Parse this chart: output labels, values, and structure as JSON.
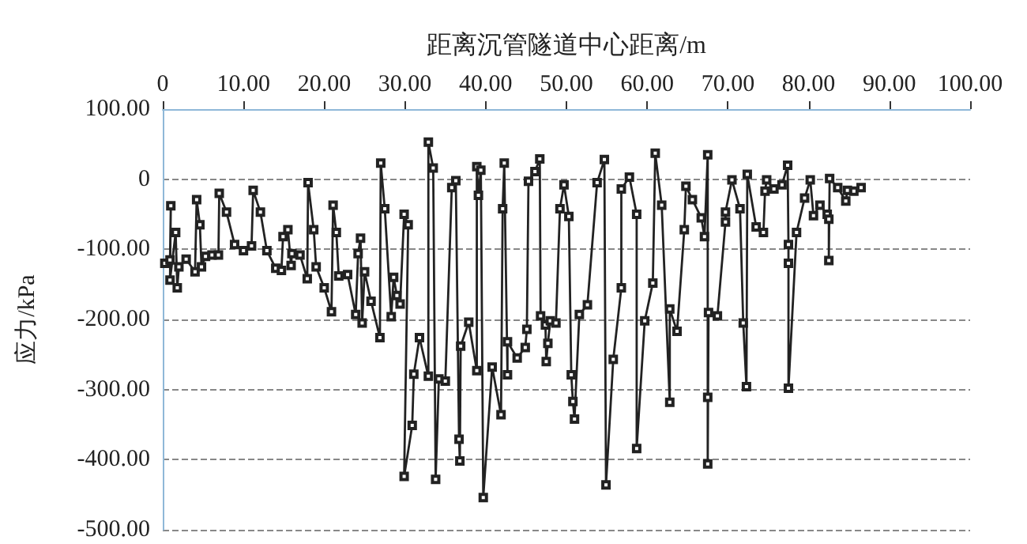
{
  "chart_data": {
    "type": "line",
    "xlabel": "距离沉管隧道中心距离/m",
    "ylabel": "应力/kPa",
    "series": [
      {
        "color": "#222222",
        "x": [
          0.26,
          0.9,
          1.0,
          0.9,
          1.6,
          1.8,
          2.0,
          2.9,
          4.0,
          4.2,
          4.6,
          4.8,
          5.3,
          6.1,
          6.9,
          7.0,
          7.9,
          8.9,
          10.0,
          11.0,
          11.2,
          12.1,
          12.9,
          14.0,
          14.7,
          14.9,
          15.5,
          15.9,
          16.0,
          17.0,
          17.9,
          18.0,
          18.7,
          19.0,
          20.0,
          20.9,
          21.1,
          21.5,
          21.8,
          22.9,
          23.9,
          24.2,
          24.5,
          24.7,
          25.0,
          25.8,
          26.9,
          27.0,
          27.5,
          28.3,
          28.6,
          29.0,
          29.4,
          29.9,
          30.4,
          29.9,
          30.9,
          31.1,
          31.8,
          32.9,
          32.9,
          33.5,
          33.8,
          34.2,
          35.0,
          35.8,
          36.3,
          36.7,
          36.8,
          36.9,
          37.9,
          38.9,
          38.9,
          39.1,
          39.4,
          39.7,
          40.8,
          41.9,
          42.1,
          42.3,
          42.7,
          42.7,
          43.9,
          44.9,
          45.1,
          45.3,
          46.1,
          46.7,
          46.8,
          47.4,
          47.5,
          47.7,
          48.0,
          48.7,
          49.2,
          49.7,
          50.3,
          50.6,
          50.8,
          51.0,
          51.6,
          52.6,
          53.8,
          54.7,
          54.9,
          55.8,
          56.8,
          56.8,
          57.8,
          58.7,
          58.7,
          59.7,
          60.7,
          61.0,
          61.8,
          62.8,
          62.8,
          63.7,
          64.6,
          64.8,
          65.6,
          66.7,
          67.1,
          67.5,
          67.5,
          67.5,
          67.6,
          68.7,
          69.7,
          69.7,
          70.5,
          71.5,
          71.9,
          72.3,
          72.4,
          73.5,
          74.4,
          74.6,
          74.8,
          75.7,
          76.7,
          77.4,
          77.5,
          77.5,
          77.5,
          78.5,
          79.5,
          80.2,
          80.6,
          81.4,
          82.3,
          82.5,
          82.5,
          82.6,
          83.6,
          84.6,
          84.8,
          85.6,
          86.5
        ],
        "values": [
          -120,
          -115,
          -38,
          -144,
          -76,
          -155,
          -125,
          -114,
          -132,
          -29,
          -65,
          -125,
          -110,
          -108,
          -108,
          -20,
          -47,
          -93,
          -102,
          -95,
          -16,
          -47,
          -102,
          -127,
          -130,
          -82,
          -72,
          -123,
          -106,
          -108,
          -142,
          -5,
          -72,
          -125,
          -155,
          -189,
          -37,
          -76,
          -138,
          -136,
          -193,
          -106,
          -84,
          -205,
          -132,
          -174,
          -226,
          23,
          -42,
          -196,
          -140,
          -166,
          -178,
          -50,
          -65,
          -424,
          -351,
          -278,
          -226,
          -281,
          53,
          16,
          -428,
          -285,
          -288,
          -12,
          -2,
          -371,
          -402,
          -238,
          -204,
          -273,
          18,
          -23,
          13,
          -454,
          -268,
          -336,
          -42,
          23,
          -279,
          -232,
          -255,
          -240,
          -214,
          -3,
          11,
          29,
          -195,
          -208,
          -260,
          -234,
          -202,
          -205,
          -42,
          -8,
          -53,
          -279,
          -317,
          -342,
          -193,
          -179,
          -5,
          28,
          -436,
          -257,
          -155,
          -14,
          3,
          -50,
          -384,
          -202,
          -148,
          37,
          -37,
          -318,
          -185,
          -217,
          -72,
          -10,
          -29,
          -55,
          -82,
          35,
          -311,
          -406,
          -190,
          -195,
          -61,
          -47,
          -1,
          -42,
          -205,
          -296,
          7,
          -68,
          -76,
          -17,
          -1,
          -14,
          -8,
          20,
          -93,
          -120,
          -298,
          -76,
          -27,
          -1,
          -52,
          -37,
          -50,
          -57,
          -116,
          1,
          -12,
          -31,
          -16,
          -17,
          -12
        ]
      }
    ],
    "xlim": [
      0,
      100
    ],
    "xticks": [
      {
        "value": 0,
        "label": "0"
      },
      {
        "value": 10,
        "label": "10.00"
      },
      {
        "value": 20,
        "label": "20.00"
      },
      {
        "value": 30,
        "label": "30.00"
      },
      {
        "value": 40,
        "label": "40.00"
      },
      {
        "value": 50,
        "label": "50.00"
      },
      {
        "value": 60,
        "label": "60.00"
      },
      {
        "value": 70,
        "label": "70.00"
      },
      {
        "value": 80,
        "label": "80.00"
      },
      {
        "value": 90,
        "label": "90.00"
      },
      {
        "value": 100,
        "label": "100.00"
      }
    ],
    "ylim": [
      -500,
      100
    ],
    "yticks": [
      {
        "value": 100,
        "label": "100.00"
      },
      {
        "value": 0,
        "label": "0"
      },
      {
        "value": -100,
        "label": "-100.00"
      },
      {
        "value": -200,
        "label": "-200.00"
      },
      {
        "value": -300,
        "label": "-300.00"
      },
      {
        "value": -400,
        "label": "-400.00"
      },
      {
        "value": -500,
        "label": "-500.00"
      }
    ],
    "grid": "y",
    "marker": "square",
    "line_style": "solid"
  }
}
